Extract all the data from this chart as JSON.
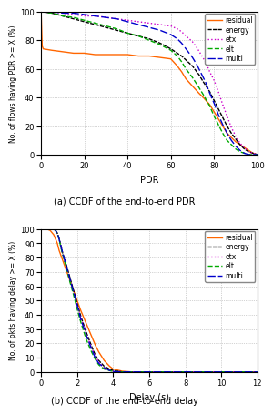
{
  "plot1": {
    "caption": "(a) CCDF of the end-to-end PDR",
    "xlabel": "PDR",
    "ylabel": "No. of flows having PDR >= X (%)",
    "xlim": [
      0,
      100
    ],
    "ylim": [
      0,
      100
    ],
    "xticks": [
      0,
      20,
      40,
      60,
      80,
      100
    ],
    "yticks": [
      0,
      20,
      40,
      60,
      80,
      100
    ],
    "series": {
      "residual": {
        "color": "#ff6600",
        "linestyle": "solid",
        "linewidth": 1.0,
        "points": [
          [
            0,
            100
          ],
          [
            0.5,
            76
          ],
          [
            1,
            74
          ],
          [
            5,
            73
          ],
          [
            10,
            72
          ],
          [
            15,
            71
          ],
          [
            20,
            71
          ],
          [
            25,
            70
          ],
          [
            30,
            70
          ],
          [
            35,
            70
          ],
          [
            40,
            70
          ],
          [
            45,
            69
          ],
          [
            50,
            69
          ],
          [
            55,
            68
          ],
          [
            60,
            67
          ],
          [
            63,
            62
          ],
          [
            65,
            58
          ],
          [
            67,
            53
          ],
          [
            70,
            48
          ],
          [
            73,
            43
          ],
          [
            75,
            40
          ],
          [
            78,
            35
          ],
          [
            80,
            30
          ],
          [
            82,
            25
          ],
          [
            84,
            20
          ],
          [
            86,
            15
          ],
          [
            88,
            12
          ],
          [
            90,
            9
          ],
          [
            92,
            7
          ],
          [
            94,
            5
          ],
          [
            96,
            3
          ],
          [
            98,
            1
          ],
          [
            100,
            0
          ]
        ]
      },
      "energy": {
        "color": "#000000",
        "linestyle": "densely_dashed",
        "linewidth": 1.0,
        "points": [
          [
            0,
            100
          ],
          [
            5,
            99
          ],
          [
            10,
            97
          ],
          [
            15,
            95
          ],
          [
            20,
            93
          ],
          [
            25,
            91
          ],
          [
            30,
            89
          ],
          [
            35,
            87
          ],
          [
            40,
            85
          ],
          [
            45,
            83
          ],
          [
            50,
            81
          ],
          [
            55,
            78
          ],
          [
            60,
            74
          ],
          [
            65,
            69
          ],
          [
            70,
            62
          ],
          [
            73,
            56
          ],
          [
            75,
            51
          ],
          [
            78,
            44
          ],
          [
            80,
            38
          ],
          [
            82,
            32
          ],
          [
            84,
            26
          ],
          [
            86,
            20
          ],
          [
            88,
            15
          ],
          [
            90,
            11
          ],
          [
            92,
            7
          ],
          [
            94,
            4
          ],
          [
            96,
            2
          ],
          [
            98,
            1
          ],
          [
            100,
            0
          ]
        ]
      },
      "etx": {
        "color": "#cc00cc",
        "linestyle": "dotted",
        "linewidth": 1.0,
        "points": [
          [
            0,
            100
          ],
          [
            5,
            100
          ],
          [
            10,
            99
          ],
          [
            15,
            98
          ],
          [
            20,
            97
          ],
          [
            25,
            97
          ],
          [
            30,
            96
          ],
          [
            35,
            95
          ],
          [
            40,
            94
          ],
          [
            45,
            93
          ],
          [
            50,
            92
          ],
          [
            55,
            91
          ],
          [
            60,
            90
          ],
          [
            63,
            88
          ],
          [
            65,
            86
          ],
          [
            67,
            83
          ],
          [
            70,
            79
          ],
          [
            72,
            75
          ],
          [
            74,
            70
          ],
          [
            76,
            65
          ],
          [
            78,
            58
          ],
          [
            80,
            52
          ],
          [
            82,
            44
          ],
          [
            84,
            35
          ],
          [
            86,
            27
          ],
          [
            88,
            19
          ],
          [
            90,
            13
          ],
          [
            92,
            8
          ],
          [
            94,
            5
          ],
          [
            96,
            2
          ],
          [
            98,
            1
          ],
          [
            100,
            0
          ]
        ]
      },
      "elt": {
        "color": "#00aa00",
        "linestyle": "dashed",
        "linewidth": 1.0,
        "points": [
          [
            0,
            100
          ],
          [
            5,
            99
          ],
          [
            10,
            97
          ],
          [
            15,
            96
          ],
          [
            20,
            94
          ],
          [
            25,
            92
          ],
          [
            30,
            90
          ],
          [
            35,
            88
          ],
          [
            40,
            85
          ],
          [
            45,
            83
          ],
          [
            50,
            80
          ],
          [
            55,
            77
          ],
          [
            60,
            73
          ],
          [
            63,
            69
          ],
          [
            65,
            65
          ],
          [
            67,
            60
          ],
          [
            70,
            54
          ],
          [
            73,
            47
          ],
          [
            75,
            42
          ],
          [
            78,
            34
          ],
          [
            80,
            27
          ],
          [
            82,
            21
          ],
          [
            84,
            15
          ],
          [
            86,
            10
          ],
          [
            88,
            7
          ],
          [
            90,
            4
          ],
          [
            92,
            2
          ],
          [
            94,
            1
          ],
          [
            96,
            0
          ],
          [
            100,
            0
          ]
        ]
      },
      "multi": {
        "color": "#0000cc",
        "linestyle": "blue_dashed",
        "linewidth": 1.0,
        "points": [
          [
            0,
            100
          ],
          [
            5,
            100
          ],
          [
            10,
            99
          ],
          [
            15,
            99
          ],
          [
            20,
            98
          ],
          [
            25,
            97
          ],
          [
            30,
            96
          ],
          [
            35,
            95
          ],
          [
            40,
            93
          ],
          [
            45,
            91
          ],
          [
            50,
            89
          ],
          [
            55,
            87
          ],
          [
            60,
            84
          ],
          [
            63,
            81
          ],
          [
            65,
            78
          ],
          [
            67,
            74
          ],
          [
            70,
            68
          ],
          [
            72,
            63
          ],
          [
            74,
            57
          ],
          [
            76,
            51
          ],
          [
            78,
            43
          ],
          [
            80,
            36
          ],
          [
            82,
            28
          ],
          [
            84,
            21
          ],
          [
            86,
            15
          ],
          [
            88,
            10
          ],
          [
            90,
            6
          ],
          [
            92,
            3
          ],
          [
            94,
            1
          ],
          [
            96,
            0
          ],
          [
            100,
            0
          ]
        ]
      }
    }
  },
  "plot2": {
    "caption": "(b) CCDF of the end-to-end delay",
    "xlabel": "Delay (s)",
    "ylabel": "No. of pkts having delay >= X (%)",
    "xlim": [
      0,
      12
    ],
    "ylim": [
      0,
      100
    ],
    "xticks": [
      0,
      2,
      4,
      6,
      8,
      10,
      12
    ],
    "yticks": [
      0,
      10,
      20,
      30,
      40,
      50,
      60,
      70,
      80,
      90,
      100
    ],
    "series": {
      "residual": {
        "color": "#ff6600",
        "linestyle": "solid",
        "linewidth": 1.0,
        "points": [
          [
            0,
            100
          ],
          [
            0.3,
            100
          ],
          [
            0.5,
            99
          ],
          [
            0.7,
            96
          ],
          [
            0.9,
            90
          ],
          [
            1.0,
            85
          ],
          [
            1.2,
            78
          ],
          [
            1.4,
            71
          ],
          [
            1.6,
            64
          ],
          [
            1.8,
            57
          ],
          [
            2.0,
            50
          ],
          [
            2.2,
            43
          ],
          [
            2.5,
            34
          ],
          [
            2.8,
            25
          ],
          [
            3.0,
            19
          ],
          [
            3.2,
            14
          ],
          [
            3.5,
            8
          ],
          [
            3.8,
            4
          ],
          [
            4.0,
            2
          ],
          [
            4.5,
            0.5
          ],
          [
            5.0,
            0
          ],
          [
            12,
            0
          ]
        ]
      },
      "energy": {
        "color": "#000000",
        "linestyle": "densely_dashed",
        "linewidth": 1.0,
        "points": [
          [
            0,
            100
          ],
          [
            0.7,
            100
          ],
          [
            0.8,
            99
          ],
          [
            0.9,
            97
          ],
          [
            1.0,
            93
          ],
          [
            1.1,
            88
          ],
          [
            1.2,
            83
          ],
          [
            1.4,
            75
          ],
          [
            1.6,
            66
          ],
          [
            1.8,
            57
          ],
          [
            2.0,
            48
          ],
          [
            2.2,
            39
          ],
          [
            2.5,
            28
          ],
          [
            2.8,
            18
          ],
          [
            3.0,
            12
          ],
          [
            3.2,
            8
          ],
          [
            3.5,
            4
          ],
          [
            3.8,
            2
          ],
          [
            4.0,
            1
          ],
          [
            4.5,
            0
          ],
          [
            12,
            0
          ]
        ]
      },
      "etx": {
        "color": "#cc00cc",
        "linestyle": "dotted",
        "linewidth": 1.0,
        "points": [
          [
            0,
            100
          ],
          [
            0.7,
            100
          ],
          [
            0.8,
            99
          ],
          [
            0.9,
            97
          ],
          [
            1.0,
            93
          ],
          [
            1.1,
            88
          ],
          [
            1.2,
            82
          ],
          [
            1.4,
            74
          ],
          [
            1.6,
            65
          ],
          [
            1.8,
            56
          ],
          [
            2.0,
            47
          ],
          [
            2.2,
            38
          ],
          [
            2.5,
            27
          ],
          [
            2.8,
            17
          ],
          [
            3.0,
            11
          ],
          [
            3.2,
            7
          ],
          [
            3.5,
            3
          ],
          [
            3.8,
            1
          ],
          [
            4.0,
            0.5
          ],
          [
            4.5,
            0
          ],
          [
            12,
            0
          ]
        ]
      },
      "elt": {
        "color": "#00aa00",
        "linestyle": "dashed",
        "linewidth": 1.0,
        "points": [
          [
            0,
            100
          ],
          [
            0.7,
            100
          ],
          [
            0.8,
            99
          ],
          [
            0.9,
            97
          ],
          [
            1.0,
            93
          ],
          [
            1.1,
            87
          ],
          [
            1.2,
            82
          ],
          [
            1.4,
            73
          ],
          [
            1.6,
            63
          ],
          [
            1.8,
            54
          ],
          [
            2.0,
            44
          ],
          [
            2.2,
            35
          ],
          [
            2.5,
            23
          ],
          [
            2.8,
            14
          ],
          [
            3.0,
            9
          ],
          [
            3.2,
            5
          ],
          [
            3.5,
            2
          ],
          [
            3.8,
            1
          ],
          [
            4.0,
            0.3
          ],
          [
            4.5,
            0
          ],
          [
            12,
            0
          ]
        ]
      },
      "multi": {
        "color": "#0000cc",
        "linestyle": "blue_dashed",
        "linewidth": 1.0,
        "points": [
          [
            0,
            100
          ],
          [
            0.7,
            100
          ],
          [
            0.8,
            99
          ],
          [
            0.9,
            97
          ],
          [
            1.0,
            93
          ],
          [
            1.1,
            88
          ],
          [
            1.2,
            83
          ],
          [
            1.4,
            74
          ],
          [
            1.6,
            65
          ],
          [
            1.8,
            56
          ],
          [
            2.0,
            47
          ],
          [
            2.2,
            37
          ],
          [
            2.5,
            26
          ],
          [
            2.8,
            16
          ],
          [
            3.0,
            10
          ],
          [
            3.2,
            6
          ],
          [
            3.5,
            3
          ],
          [
            3.8,
            1
          ],
          [
            4.0,
            0.3
          ],
          [
            4.5,
            0
          ],
          [
            12,
            0
          ]
        ]
      }
    }
  },
  "legend_order": [
    "residual",
    "energy",
    "etx",
    "elt",
    "multi"
  ],
  "legend_labels": [
    "residual",
    "energy",
    "etx",
    "elt",
    "multi"
  ]
}
